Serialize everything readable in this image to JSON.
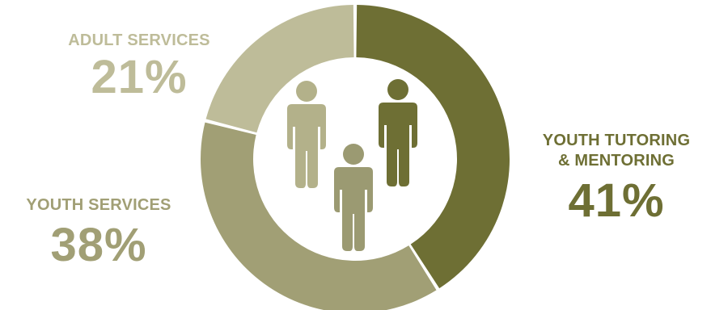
{
  "chart_data": {
    "type": "pie",
    "variant": "donut",
    "categories": [
      "YOUTH TUTORING & MENTORING",
      "YOUTH SERVICES",
      "ADULT SERVICES"
    ],
    "values": [
      41,
      38,
      21
    ],
    "value_labels": [
      "41%",
      "38%",
      "21%"
    ],
    "colors": [
      "#6e6f34",
      "#a19f75",
      "#bebc99"
    ],
    "title": "",
    "center_icon": "people-group-icon",
    "center_icon_colors": [
      "#b3b18a",
      "#9b9a72",
      "#6e6f34"
    ]
  },
  "labels": {
    "adult": {
      "name": "ADULT SERVICES",
      "pct": "21%"
    },
    "youth": {
      "name": "YOUTH SERVICES",
      "pct": "38%"
    },
    "tutor": {
      "name_line1": "YOUTH TUTORING",
      "name_line2": "& MENTORING",
      "pct": "41%"
    }
  }
}
